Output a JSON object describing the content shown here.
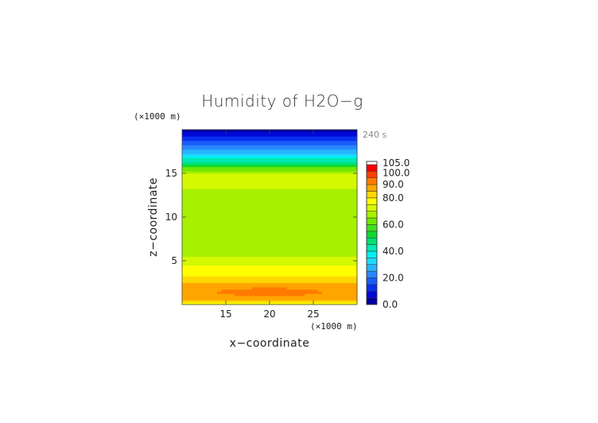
{
  "chart_data": {
    "type": "heatmap",
    "title": "Humidity of H2O−g",
    "time_label": "240 s",
    "xlabel": "x−coordinate",
    "ylabel": "z−coordinate",
    "x_unit": "(×1000 m)",
    "y_unit": "(×1000 m)",
    "xlim": [
      10,
      30
    ],
    "ylim": [
      0,
      20
    ],
    "x_ticks": [
      15,
      20,
      25
    ],
    "y_ticks": [
      5,
      10,
      15
    ],
    "x_tick_labels": [
      "15",
      "20",
      "25"
    ],
    "y_tick_labels": [
      "5",
      "10",
      "15"
    ],
    "grid": false,
    "legend_position": "right",
    "profile_z": [
      0.0,
      0.5,
      1.0,
      1.5,
      2.0,
      2.5,
      3.0,
      3.5,
      4.0,
      4.5,
      5.0,
      5.5,
      6.0,
      8.0,
      10.0,
      12.0,
      13.0,
      13.5,
      14.0,
      14.5,
      15.0,
      15.5,
      16.0,
      16.5,
      17.0,
      17.5,
      18.0,
      18.5,
      19.0,
      19.5,
      20.0
    ],
    "profile_value": [
      76,
      86,
      89,
      91,
      88,
      85,
      82,
      79,
      77,
      75,
      74,
      70,
      67,
      65,
      65,
      66,
      68,
      72,
      74,
      75,
      70,
      63,
      52,
      42,
      35,
      28,
      22,
      17,
      12,
      7,
      4
    ],
    "colorbar": {
      "levels": [
        0,
        5,
        10,
        15,
        20,
        25,
        30,
        35,
        40,
        45,
        50,
        55,
        60,
        65,
        70,
        75,
        80,
        85,
        90,
        95,
        100,
        105
      ],
      "colors": [
        "#0000a0",
        "#0008d8",
        "#0a2ef0",
        "#1a5cf8",
        "#2a86ff",
        "#27b4ff",
        "#1fd9ff",
        "#00f0f0",
        "#00e8b0",
        "#00e070",
        "#10d830",
        "#40e020",
        "#70e800",
        "#a6f000",
        "#d4f800",
        "#ffff00",
        "#ffd700",
        "#ffa500",
        "#ff7a00",
        "#ff4000",
        "#ff0000"
      ],
      "top_color": "#ffffff",
      "tick_labels": [
        "0.0",
        "20.0",
        "40.0",
        "60.0",
        "80.0",
        "90.0",
        "100.0",
        "105.0"
      ],
      "tick_values": [
        0,
        20,
        40,
        60,
        80,
        90,
        100,
        105
      ]
    }
  }
}
